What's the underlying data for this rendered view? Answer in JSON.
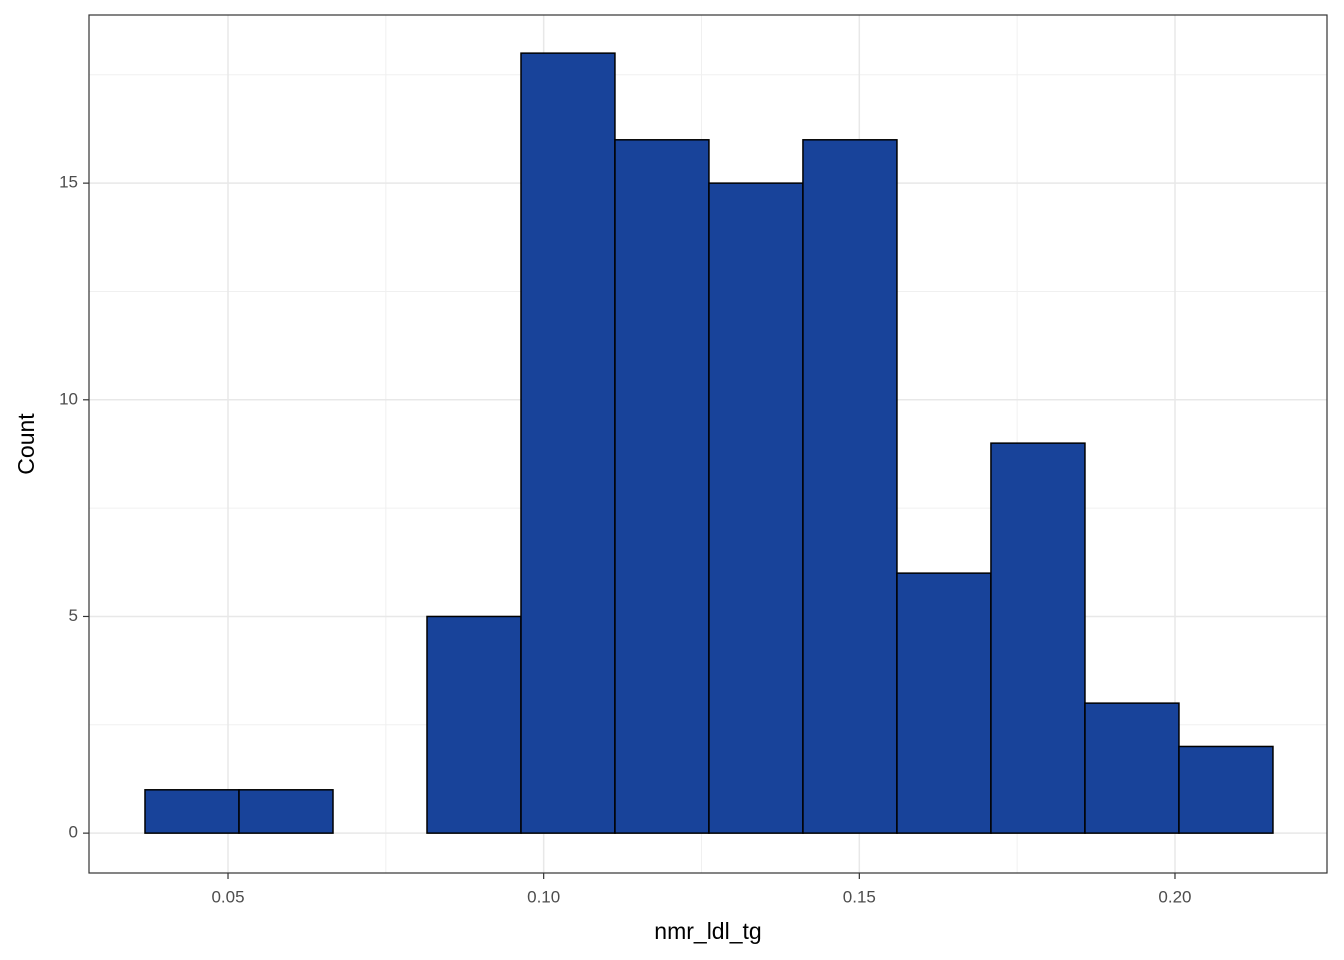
{
  "chart_data": {
    "type": "histogram",
    "x_label": "nmr_ldl_tg",
    "y_label": "Count",
    "bins": [
      0.03685,
      0.05174,
      0.06663,
      0.08152,
      0.09641,
      0.11129,
      0.12618,
      0.14107,
      0.15596,
      0.17085,
      0.18574,
      0.20063,
      0.21552
    ],
    "counts": [
      1,
      1,
      0,
      5,
      18,
      16,
      15,
      16,
      6,
      9,
      3,
      2
    ],
    "color": "#18439a",
    "edge_color": "#000000",
    "xlim": [
      0.02798,
      0.22408
    ],
    "ylim": [
      -0.92,
      18.88
    ],
    "xticks": [
      {
        "value": 0.05,
        "label": "0.05"
      },
      {
        "value": 0.1,
        "label": "0.10"
      },
      {
        "value": 0.15,
        "label": "0.15"
      },
      {
        "value": 0.2,
        "label": "0.20"
      }
    ],
    "yticks": [
      0,
      5,
      10,
      15
    ],
    "x_minor_grid": [
      0.075,
      0.125,
      0.175
    ],
    "y_minor_grid": [
      2.5,
      7.5,
      12.5,
      17.5
    ],
    "grid": true
  }
}
